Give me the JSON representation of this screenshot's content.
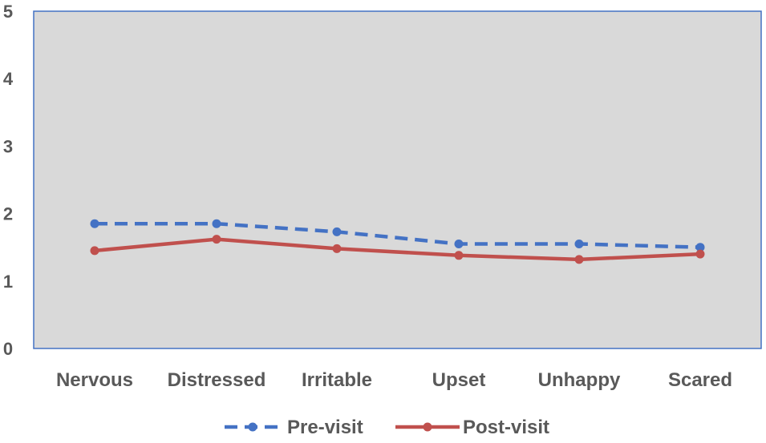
{
  "chart_data": {
    "type": "line",
    "categories": [
      "Nervous",
      "Distressed",
      "Irritable",
      "Upset",
      "Unhappy",
      "Scared"
    ],
    "series": [
      {
        "name": "Pre-visit",
        "values": [
          1.85,
          1.85,
          1.73,
          1.55,
          1.55,
          1.5
        ],
        "color": "#4472C4",
        "style": "dashed"
      },
      {
        "name": "Post-visit",
        "values": [
          1.45,
          1.62,
          1.48,
          1.38,
          1.32,
          1.4
        ],
        "color": "#C0504D",
        "style": "solid"
      }
    ],
    "ylim": [
      0,
      5
    ],
    "yticks": [
      "0",
      "1",
      "2",
      "3",
      "4",
      "5"
    ],
    "grid": false,
    "plot_background": "#D9D9D9",
    "plot_border": "#4472C4",
    "legend_position": "bottom",
    "title": "",
    "xlabel": "",
    "ylabel": ""
  }
}
